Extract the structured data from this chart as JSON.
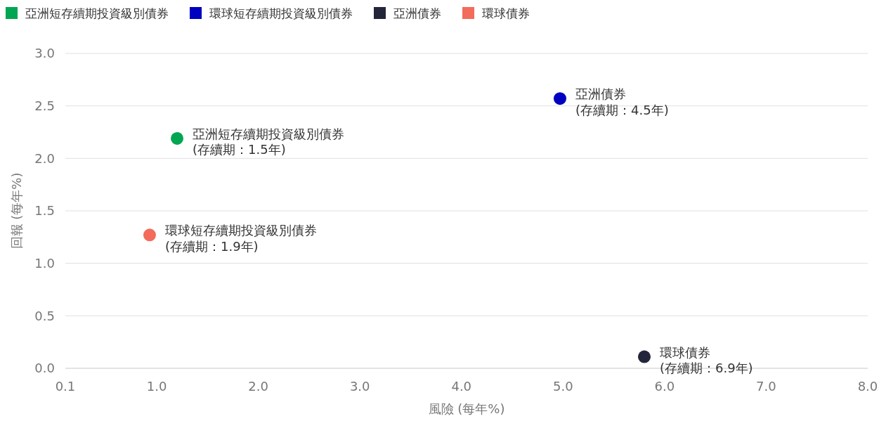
{
  "chart_data": {
    "type": "scatter",
    "xlabel": "風險 (每年%)",
    "ylabel": "回報 (每年%)",
    "xlim": [
      0.1,
      8
    ],
    "ylim": [
      0,
      3
    ],
    "xticks": [
      0.1,
      {
        "value": 1,
        "label": "1.0"
      },
      {
        "value": 2,
        "label": "2.0"
      },
      {
        "value": 3,
        "label": "3.0"
      },
      {
        "value": 4,
        "label": "4.0"
      },
      {
        "value": 5,
        "label": "5.0"
      },
      {
        "value": 6,
        "label": "6.0"
      },
      {
        "value": 7,
        "label": "7.0"
      },
      {
        "value": 8,
        "label": "8.0"
      }
    ],
    "yticks": [
      {
        "value": 0,
        "label": "0.0"
      },
      0.5,
      {
        "value": 1,
        "label": "1.0"
      },
      1.5,
      {
        "value": 2,
        "label": "2.0"
      },
      2.5,
      {
        "value": 3,
        "label": "3.0"
      }
    ],
    "grid": "y",
    "legend": "top left",
    "marker": "circle",
    "series": [
      {
        "name": "亞洲短存續期投資級別債券",
        "color": "#00a651",
        "x": [
          1.2
        ],
        "values": [
          2.19
        ]
      },
      {
        "name": "環球短存續期投資級別債券",
        "color": "#0000c0",
        "x": [
          4.97
        ],
        "values": [
          2.57
        ]
      },
      {
        "name": "亞洲債券",
        "color": "#23263a",
        "x": [
          5.8
        ],
        "values": [
          0.11
        ]
      },
      {
        "name": "環球債券",
        "color": "#f26b5b",
        "x": [
          0.93
        ],
        "values": [
          1.27
        ]
      }
    ],
    "annotations": [
      {
        "text": "亞洲短存續期投資級別債券\n(存續期：1.5年)",
        "x": 1.2,
        "y": 2.19
      },
      {
        "text": "亞洲債券\n(存續期：4.5年)",
        "x": 4.97,
        "y": 2.57
      },
      {
        "text": "環球債券\n(存續期：6.9年)",
        "x": 5.8,
        "y": 0.11
      },
      {
        "text": "環球短存續期投資級別債券\n(存續期：1.9年)",
        "x": 0.93,
        "y": 1.27
      }
    ]
  }
}
